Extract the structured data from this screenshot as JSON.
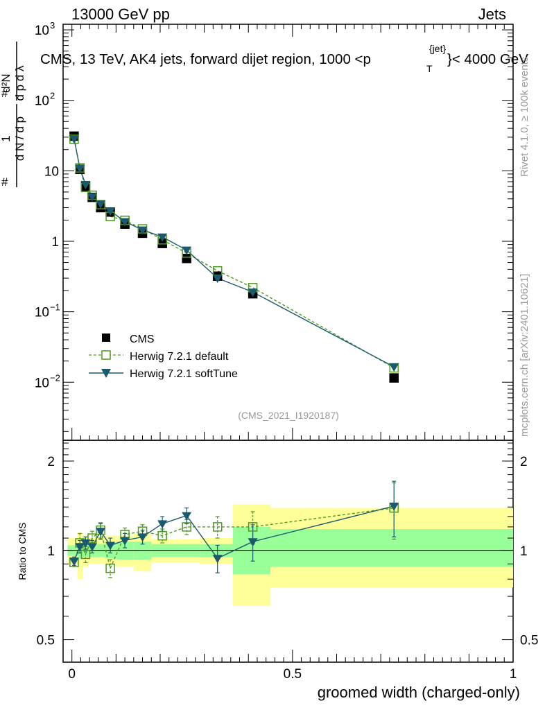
{
  "header": {
    "left": "13000 GeV pp",
    "right": "Jets",
    "plot_title": "CMS, 13 TeV, AK4 jets, forward dijet region, 1000 <p",
    "plot_title_sup": "{jet}",
    "plot_title_sub": "T",
    "plot_title_end": "}< 4000 GeV",
    "side_top": "Rivet 4.1.0, ≥ 100k events",
    "side_bottom": "mcplots.cern.ch [arXiv:2401.10621]",
    "analysis_id": "(CMS_2021_I1920187)",
    "ylabel": "1/N dN/dp_T d²N/dp_T dλ",
    "ratio_ylabel": "Ratio to CMS",
    "xlabel": "groomed width (charged-only)"
  },
  "colors": {
    "cms": "#000000",
    "herwig_default": "#4d9a1f",
    "herwig_softtune": "#1a5a6e",
    "band_inner": "#99ff99",
    "band_outer": "#ffff99"
  },
  "chart_data": [
    {
      "type": "line",
      "scale": "log",
      "xlim": [
        -0.02,
        1.0
      ],
      "ylim": [
        0.0015,
        1200
      ],
      "x_ticks": [
        0,
        0.5,
        1
      ],
      "y_ticks": [
        {
          "v": 0.01,
          "base": "10",
          "exp": "−2"
        },
        {
          "v": 0.1,
          "base": "10",
          "exp": "−1"
        },
        {
          "v": 1,
          "base": "1",
          "exp": ""
        },
        {
          "v": 10,
          "base": "10",
          "exp": ""
        },
        {
          "v": 100,
          "base": "10",
          "exp": "2"
        },
        {
          "v": 1000,
          "base": "10",
          "exp": "3"
        }
      ],
      "legend": [
        {
          "name": "CMS",
          "style": "square"
        },
        {
          "name": "Herwig 7.2.1 default",
          "style": "open-square-dashed"
        },
        {
          "name": "Herwig 7.2.1 softTune",
          "style": "triangle-line"
        }
      ],
      "x": [
        0.005,
        0.018,
        0.031,
        0.046,
        0.065,
        0.087,
        0.12,
        0.16,
        0.205,
        0.26,
        0.33,
        0.41,
        0.73
      ],
      "series": [
        {
          "name": "CMS",
          "values": [
            31,
            10.5,
            6.0,
            4.2,
            3.0,
            2.6,
            1.75,
            1.3,
            0.93,
            0.57,
            0.32,
            0.18,
            0.0115
          ]
        },
        {
          "name": "Herwig 7.2.1 default",
          "values": [
            28,
            11.0,
            5.8,
            4.5,
            3.3,
            2.25,
            1.98,
            1.5,
            1.05,
            0.68,
            0.38,
            0.22,
            0.016
          ]
        },
        {
          "name": "Herwig 7.2.1 softTune",
          "values": [
            28.5,
            10.8,
            6.4,
            4.3,
            3.4,
            2.7,
            1.9,
            1.45,
            1.15,
            0.75,
            0.3,
            0.19,
            0.0165
          ]
        }
      ]
    },
    {
      "type": "line",
      "scale": "log",
      "xlim": [
        -0.02,
        1.0
      ],
      "ylim": [
        0.42,
        2.35
      ],
      "y_ticks": [
        {
          "v": 0.5,
          "label": "0.5"
        },
        {
          "v": 1,
          "label": "1"
        },
        {
          "v": 2,
          "label": "2"
        }
      ],
      "bands": [
        {
          "x0": -0.01,
          "x1": 0.012,
          "inner": [
            0.96,
            1.04
          ],
          "outer": [
            0.9,
            1.1
          ]
        },
        {
          "x0": 0.012,
          "x1": 0.025,
          "inner": [
            0.94,
            1.06
          ],
          "outer": [
            0.8,
            1.15
          ]
        },
        {
          "x0": 0.025,
          "x1": 0.038,
          "inner": [
            0.95,
            1.05
          ],
          "outer": [
            0.88,
            1.12
          ]
        },
        {
          "x0": 0.038,
          "x1": 0.055,
          "inner": [
            0.95,
            1.05
          ],
          "outer": [
            0.9,
            1.1
          ]
        },
        {
          "x0": 0.055,
          "x1": 0.075,
          "inner": [
            0.95,
            1.05
          ],
          "outer": [
            0.9,
            1.12
          ]
        },
        {
          "x0": 0.075,
          "x1": 0.1,
          "inner": [
            0.94,
            1.06
          ],
          "outer": [
            0.9,
            1.12
          ]
        },
        {
          "x0": 0.1,
          "x1": 0.14,
          "inner": [
            0.93,
            1.07
          ],
          "outer": [
            0.88,
            1.12
          ]
        },
        {
          "x0": 0.14,
          "x1": 0.18,
          "inner": [
            0.93,
            1.07
          ],
          "outer": [
            0.85,
            1.14
          ]
        },
        {
          "x0": 0.18,
          "x1": 0.23,
          "inner": [
            0.95,
            1.05
          ],
          "outer": [
            0.91,
            1.09
          ]
        },
        {
          "x0": 0.23,
          "x1": 0.29,
          "inner": [
            0.95,
            1.05
          ],
          "outer": [
            0.91,
            1.09
          ]
        },
        {
          "x0": 0.29,
          "x1": 0.365,
          "inner": [
            0.95,
            1.05
          ],
          "outer": [
            0.9,
            1.1
          ]
        },
        {
          "x0": 0.365,
          "x1": 0.45,
          "inner": [
            0.83,
            1.2
          ],
          "outer": [
            0.65,
            1.43
          ]
        },
        {
          "x0": 0.45,
          "x1": 1.0,
          "inner": [
            0.88,
            1.18
          ],
          "outer": [
            0.75,
            1.39
          ]
        }
      ],
      "x": [
        0.005,
        0.018,
        0.031,
        0.046,
        0.065,
        0.087,
        0.12,
        0.16,
        0.205,
        0.26,
        0.33,
        0.41,
        0.73
      ],
      "series": [
        {
          "name": "Herwig 7.2.1 default",
          "values": [
            0.91,
            1.06,
            0.97,
            1.1,
            1.17,
            0.87,
            1.13,
            1.16,
            1.12,
            1.2,
            1.2,
            1.2,
            1.39
          ],
          "err": [
            0.03,
            0.08,
            0.06,
            0.06,
            0.07,
            0.06,
            0.06,
            0.06,
            0.06,
            0.07,
            0.1,
            0.15,
            0.3
          ]
        },
        {
          "name": "Herwig 7.2.1 softTune",
          "values": [
            0.92,
            1.03,
            1.06,
            1.03,
            1.16,
            1.04,
            1.08,
            1.11,
            1.23,
            1.31,
            0.94,
            1.07,
            1.41
          ],
          "err": [
            0.03,
            0.05,
            0.05,
            0.05,
            0.07,
            0.06,
            0.06,
            0.06,
            0.07,
            0.08,
            0.1,
            0.15,
            0.3
          ]
        }
      ]
    }
  ]
}
